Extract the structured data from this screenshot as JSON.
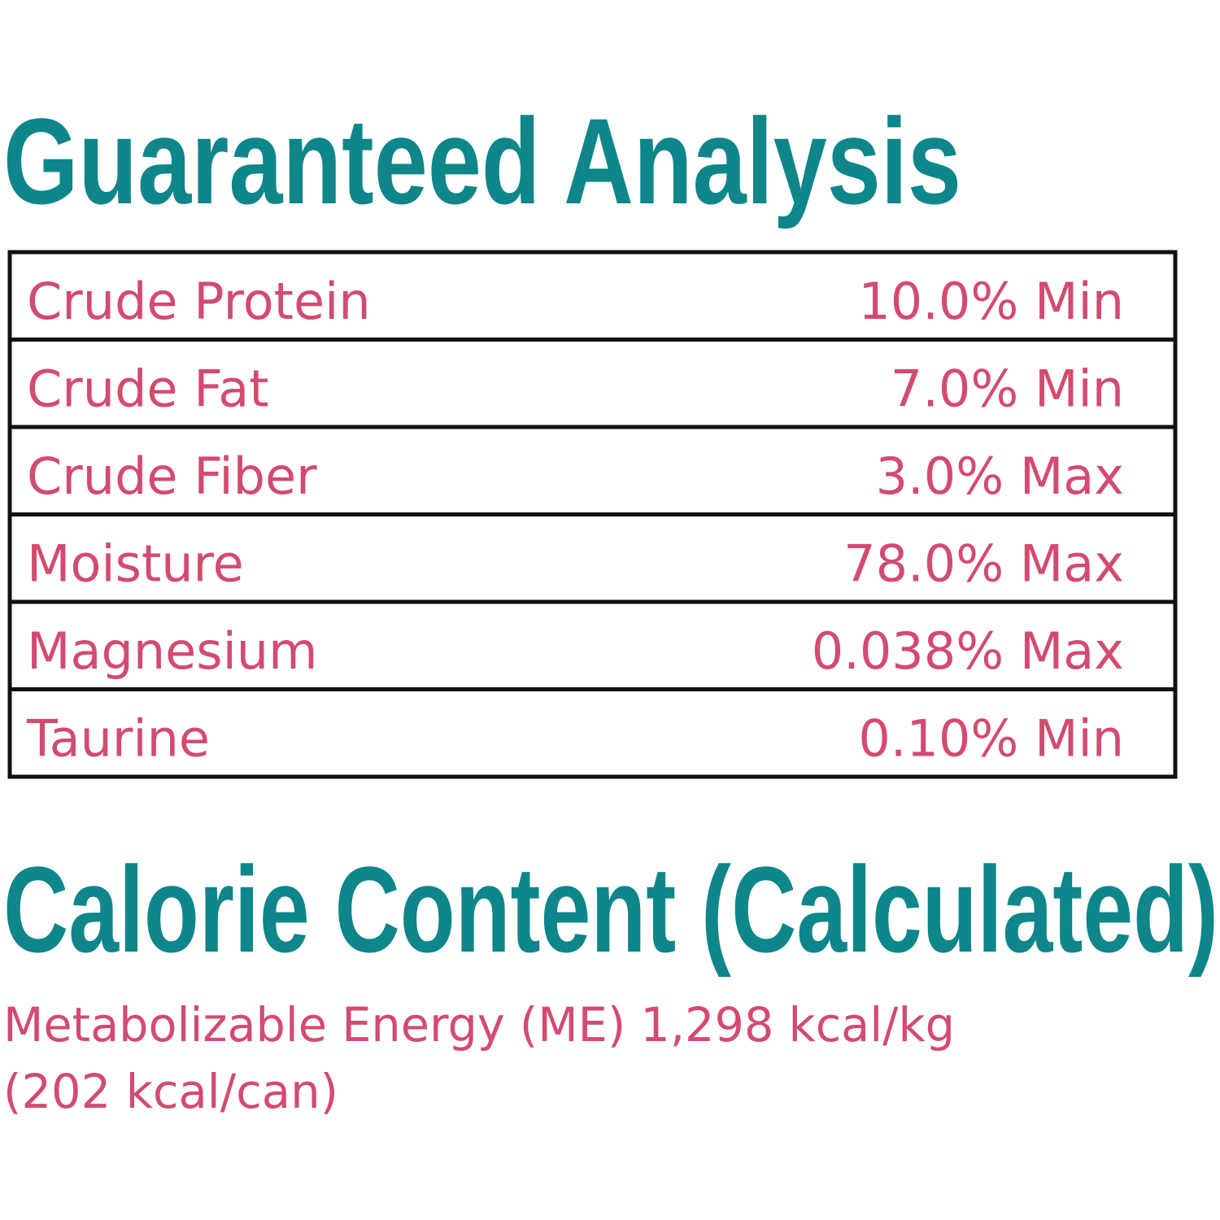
{
  "title": "Guaranteed Analysis",
  "table": {
    "rows": [
      [
        "Crude Protein",
        "10.0% Min"
      ],
      [
        "Crude Fat",
        "7.0% Min"
      ],
      [
        "Crude Fiber",
        "3.0% Max"
      ],
      [
        "Moisture",
        "78.0% Max"
      ],
      [
        "Magnesium",
        "0.038% Max"
      ],
      [
        "Taurine",
        "0.10% Min"
      ]
    ]
  },
  "calorie": {
    "title": "Calorie Content (Calculated)",
    "lines": [
      "Metabolizable Energy (ME) 1,298 kcal/kg",
      "(202 kcal/can)"
    ]
  }
}
